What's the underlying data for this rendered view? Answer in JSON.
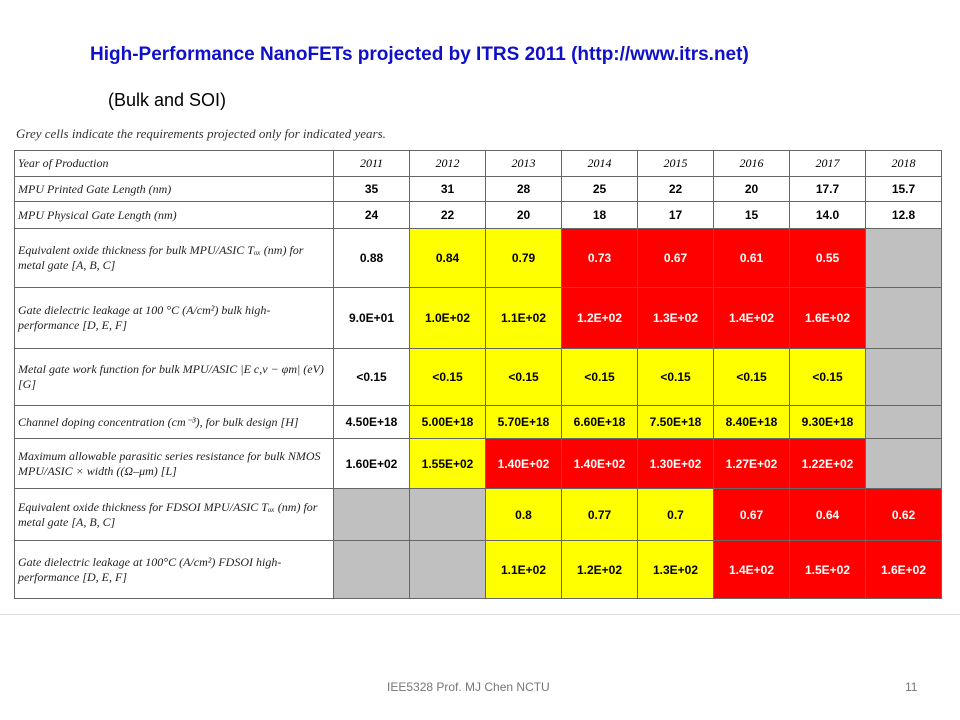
{
  "header": {
    "title": "High-Performance NanoFETs projected by ITRS 2011 (http://www.itrs.net)",
    "subtitle": "(Bulk and SOI)"
  },
  "table": {
    "note": "Grey cells indicate the requirements projected only for indicated years.",
    "columns": [
      "Year of Production",
      "2011",
      "2012",
      "2013",
      "2014",
      "2015",
      "2016",
      "2017",
      "2018"
    ],
    "rows": [
      {
        "label": "MPU Printed Gate Length (nm)",
        "cells": [
          "35",
          "31",
          "28",
          "25",
          "22",
          "20",
          "17.7",
          "15.7"
        ],
        "colors": [
          "white",
          "white",
          "white",
          "white",
          "white",
          "white",
          "white",
          "white"
        ]
      },
      {
        "label": "MPU Physical Gate Length (nm)",
        "cells": [
          "24",
          "22",
          "20",
          "18",
          "17",
          "15",
          "14.0",
          "12.8"
        ],
        "colors": [
          "white",
          "white",
          "white",
          "white",
          "white",
          "white",
          "white",
          "white"
        ]
      },
      {
        "label": "Equivalent oxide thickness for bulk MPU/ASIC Tₒₓ (nm) for metal gate [A, B, C]",
        "cells": [
          "0.88",
          "0.84",
          "0.79",
          "0.73",
          "0.67",
          "0.61",
          "0.55",
          null
        ],
        "colors": [
          "white",
          "yellow",
          "yellow",
          "red",
          "red",
          "red",
          "red",
          "grey"
        ]
      },
      {
        "label": "Gate dielectric leakage at 100 °C (A/cm²) bulk high-performance [D, E, F]",
        "cells": [
          "9.0E+01",
          "1.0E+02",
          "1.1E+02",
          "1.2E+02",
          "1.3E+02",
          "1.4E+02",
          "1.6E+02",
          null
        ],
        "colors": [
          "white",
          "yellow",
          "yellow",
          "red",
          "red",
          "red",
          "red",
          "grey"
        ]
      },
      {
        "label": "Metal gate work function for bulk MPU/ASIC |E c,v − φm| (eV) [G]",
        "cells": [
          "<0.15",
          "<0.15",
          "<0.15",
          "<0.15",
          "<0.15",
          "<0.15",
          "<0.15",
          null
        ],
        "colors": [
          "white",
          "yellow",
          "yellow",
          "yellow",
          "yellow",
          "yellow",
          "yellow",
          "grey"
        ]
      },
      {
        "label": "Channel doping concentration (cm⁻³), for bulk design [H]",
        "cells": [
          "4.50E+18",
          "5.00E+18",
          "5.70E+18",
          "6.60E+18",
          "7.50E+18",
          "8.40E+18",
          "9.30E+18",
          null
        ],
        "colors": [
          "white",
          "yellow",
          "yellow",
          "yellow",
          "yellow",
          "yellow",
          "yellow",
          "grey"
        ]
      },
      {
        "label": "Maximum allowable parasitic series resistance for bulk NMOS MPU/ASIC × width ((Ω–μm) [L]",
        "cells": [
          "1.60E+02",
          "1.55E+02",
          "1.40E+02",
          "1.40E+02",
          "1.30E+02",
          "1.27E+02",
          "1.22E+02",
          null
        ],
        "colors": [
          "white",
          "yellow",
          "red",
          "red",
          "red",
          "red",
          "red",
          "grey"
        ]
      },
      {
        "label": "Equivalent oxide thickness for FDSOI MPU/ASIC Tₒₓ (nm) for metal gate [A, B, C]",
        "cells": [
          null,
          null,
          "0.8",
          "0.77",
          "0.7",
          "0.67",
          "0.64",
          "0.62"
        ],
        "colors": [
          "grey",
          "grey",
          "yellow",
          "yellow",
          "yellow",
          "red",
          "red",
          "red"
        ]
      },
      {
        "label": "Gate dielectric leakage at 100°C (A/cm²) FDSOI high-performance [D, E, F]",
        "cells": [
          null,
          null,
          "1.1E+02",
          "1.2E+02",
          "1.3E+02",
          "1.4E+02",
          "1.5E+02",
          "1.6E+02"
        ],
        "colors": [
          "grey",
          "grey",
          "yellow",
          "yellow",
          "yellow",
          "red",
          "red",
          "red"
        ]
      }
    ]
  },
  "footer": {
    "course": "IEE5328 Prof. MJ Chen NCTU",
    "page": "11"
  }
}
